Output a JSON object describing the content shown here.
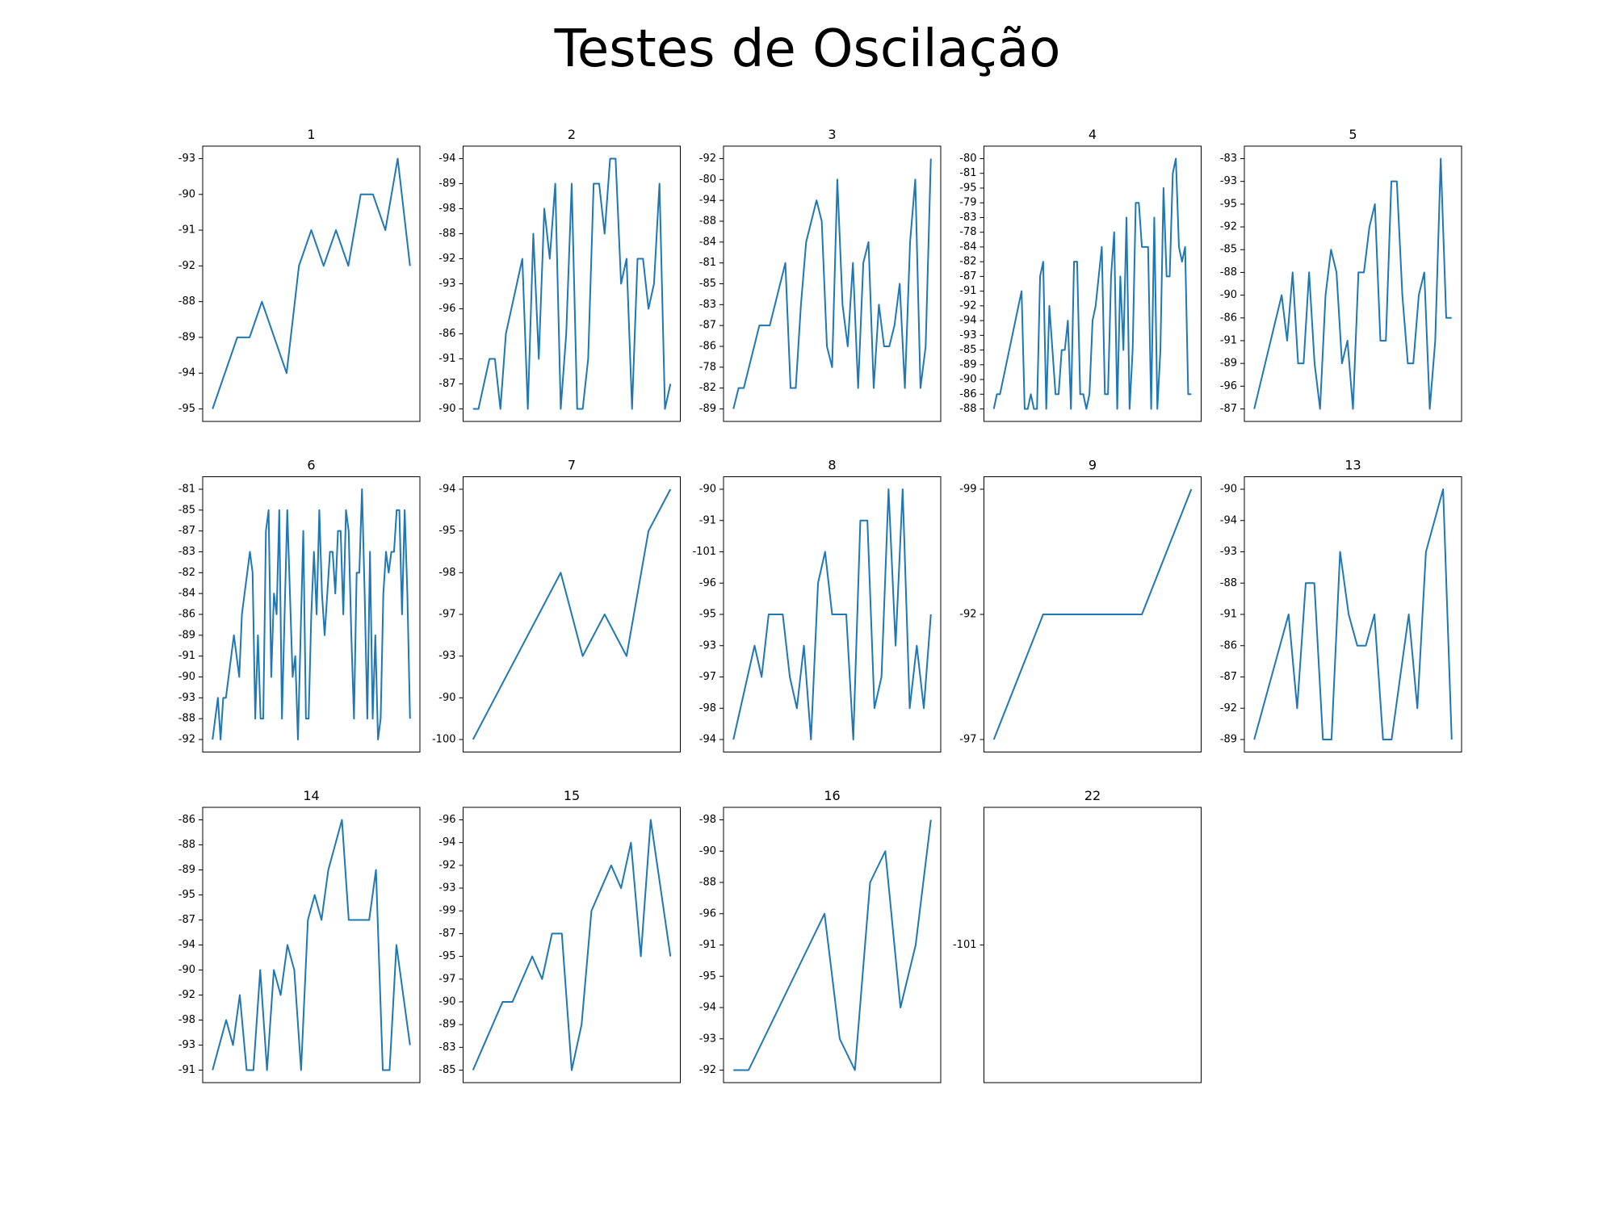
{
  "title": "Testes de Oscilação",
  "chart_data": [
    {
      "type": "line",
      "title": "1",
      "color": "#1f77b4",
      "ycategories": [
        -95,
        -94,
        -89,
        -88,
        -92,
        -91,
        -90,
        -93
      ],
      "values": [
        -95,
        -94,
        -89,
        -89,
        -88,
        -89,
        -94,
        -92,
        -91,
        -92,
        -91,
        -92,
        -90,
        -90,
        -91,
        -93,
        -92
      ]
    },
    {
      "type": "line",
      "title": "2",
      "color": "#1f77b4",
      "ycategories": [
        -90,
        -87,
        -91,
        -86,
        -96,
        -93,
        -92,
        -88,
        -98,
        -89,
        -94
      ],
      "values": [
        -90,
        -90,
        -87,
        -91,
        -91,
        -90,
        -86,
        -96,
        -93,
        -92,
        -90,
        -88,
        -91,
        -98,
        -92,
        -89,
        -90,
        -86,
        -89,
        -90,
        -90,
        -91,
        -89,
        -89,
        -88,
        -94,
        -94,
        -93,
        -92,
        -90,
        -92,
        -92,
        -96,
        -93,
        -89,
        -90,
        -87
      ]
    },
    {
      "type": "line",
      "title": "3",
      "color": "#1f77b4",
      "ycategories": [
        -89,
        -82,
        -78,
        -86,
        -87,
        -83,
        -85,
        -81,
        -84,
        -88,
        -94,
        -80,
        -92
      ],
      "values": [
        -89,
        -82,
        -82,
        -78,
        -86,
        -87,
        -87,
        -87,
        -83,
        -85,
        -81,
        -82,
        -82,
        -83,
        -84,
        -88,
        -94,
        -88,
        -86,
        -78,
        -80,
        -83,
        -86,
        -81,
        -82,
        -81,
        -84,
        -82,
        -83,
        -86,
        -86,
        -87,
        -85,
        -82,
        -84,
        -80,
        -82,
        -86,
        -92
      ]
    },
    {
      "type": "line",
      "title": "4",
      "color": "#1f77b4",
      "ycategories": [
        -88,
        -86,
        -90,
        -89,
        -85,
        -93,
        -94,
        -92,
        -91,
        -87,
        -82,
        -84,
        -78,
        -83,
        -79,
        -95,
        -81,
        -80
      ],
      "values": [
        -88,
        -86,
        -86,
        -90,
        -89,
        -85,
        -93,
        -94,
        -92,
        -91,
        -88,
        -88,
        -86,
        -88,
        -88,
        -87,
        -82,
        -88,
        -92,
        -85,
        -86,
        -86,
        -85,
        -85,
        -94,
        -88,
        -82,
        -82,
        -86,
        -86,
        -88,
        -86,
        -94,
        -92,
        -87,
        -84,
        -86,
        -86,
        -87,
        -78,
        -88,
        -87,
        -85,
        -83,
        -88,
        -85,
        -79,
        -79,
        -84,
        -84,
        -84,
        -88,
        -83,
        -88,
        -85,
        -95,
        -87,
        -87,
        -81,
        -80,
        -84,
        -82,
        -84,
        -86,
        -86
      ]
    },
    {
      "type": "line",
      "title": "5",
      "color": "#1f77b4",
      "ycategories": [
        -87,
        -96,
        -89,
        -91,
        -86,
        -90,
        -88,
        -85,
        -92,
        -95,
        -93,
        -83
      ],
      "values": [
        -87,
        -96,
        -89,
        -91,
        -86,
        -90,
        -91,
        -88,
        -89,
        -89,
        -88,
        -89,
        -87,
        -90,
        -85,
        -88,
        -89,
        -91,
        -87,
        -88,
        -88,
        -92,
        -95,
        -91,
        -91,
        -93,
        -93,
        -90,
        -89,
        -89,
        -90,
        -88,
        -87,
        -91,
        -83,
        -86,
        -86
      ]
    },
    {
      "type": "line",
      "title": "6",
      "color": "#1f77b4",
      "ycategories": [
        -92,
        -88,
        -93,
        -90,
        -91,
        -89,
        -86,
        -84,
        -82,
        -83,
        -87,
        -85,
        -81
      ],
      "values": [
        -92,
        -88,
        -93,
        -92,
        -93,
        -93,
        -90,
        -91,
        -89,
        -91,
        -90,
        -86,
        -84,
        -82,
        -83,
        -82,
        -88,
        -89,
        -88,
        -88,
        -87,
        -85,
        -90,
        -84,
        -86,
        -85,
        -88,
        -86,
        -85,
        -84,
        -90,
        -91,
        -92,
        -89,
        -87,
        -88,
        -88,
        -86,
        -83,
        -86,
        -85,
        -84,
        -89,
        -84,
        -83,
        -83,
        -84,
        -87,
        -87,
        -86,
        -85,
        -87,
        -89,
        -88,
        -82,
        -82,
        -81,
        -84,
        -88,
        -83,
        -88,
        -89,
        -92,
        -88,
        -84,
        -83,
        -82,
        -83,
        -83,
        -85,
        -85,
        -86,
        -85,
        -84,
        -88
      ]
    },
    {
      "type": "line",
      "title": "7",
      "color": "#1f77b4",
      "ycategories": [
        -100,
        -90,
        -93,
        -97,
        -98,
        -95,
        -94
      ],
      "values": [
        -100,
        -90,
        -93,
        -97,
        -98,
        -93,
        -97,
        -93,
        -95,
        -94
      ]
    },
    {
      "type": "line",
      "title": "8",
      "color": "#1f77b4",
      "ycategories": [
        -94,
        -98,
        -97,
        -93,
        -95,
        -96,
        -101,
        -91,
        -90
      ],
      "values": [
        -94,
        -98,
        -97,
        -93,
        -97,
        -95,
        -95,
        -95,
        -97,
        -98,
        -93,
        -94,
        -96,
        -101,
        -95,
        -95,
        -95,
        -94,
        -91,
        -91,
        -98,
        -97,
        -90,
        -93,
        -90,
        -98,
        -93,
        -98,
        -95
      ]
    },
    {
      "type": "line",
      "title": "9",
      "color": "#1f77b4",
      "ycategories": [
        -97,
        -92,
        -99
      ],
      "values": [
        -97,
        -92,
        -92,
        -92,
        -99
      ]
    },
    {
      "type": "line",
      "title": "13",
      "color": "#1f77b4",
      "ycategories": [
        -89,
        -92,
        -87,
        -86,
        -91,
        -88,
        -93,
        -94,
        -90
      ],
      "values": [
        -89,
        -92,
        -87,
        -86,
        -91,
        -92,
        -88,
        -88,
        -89,
        -89,
        -93,
        -91,
        -86,
        -86,
        -91,
        -89,
        -89,
        -87,
        -91,
        -92,
        -93,
        -94,
        -90,
        -89
      ]
    },
    {
      "type": "line",
      "title": "14",
      "color": "#1f77b4",
      "ycategories": [
        -91,
        -93,
        -98,
        -92,
        -90,
        -94,
        -87,
        -95,
        -89,
        -88,
        -86
      ],
      "values": [
        -91,
        -93,
        -98,
        -93,
        -92,
        -91,
        -91,
        -90,
        -91,
        -90,
        -92,
        -94,
        -90,
        -91,
        -87,
        -95,
        -87,
        -89,
        -88,
        -86,
        -87,
        -87,
        -87,
        -87,
        -89,
        -91,
        -91,
        -94,
        -92,
        -93
      ]
    },
    {
      "type": "line",
      "title": "15",
      "color": "#1f77b4",
      "ycategories": [
        -85,
        -83,
        -89,
        -90,
        -97,
        -95,
        -87,
        -99,
        -93,
        -92,
        -94,
        -96
      ],
      "values": [
        -85,
        -83,
        -89,
        -90,
        -90,
        -97,
        -95,
        -97,
        -87,
        -87,
        -85,
        -89,
        -99,
        -93,
        -92,
        -93,
        -94,
        -95,
        -96,
        -93,
        -95
      ]
    },
    {
      "type": "line",
      "title": "16",
      "color": "#1f77b4",
      "ycategories": [
        -92,
        -93,
        -94,
        -95,
        -91,
        -96,
        -88,
        -90,
        -98
      ],
      "values": [
        -92,
        -92,
        -93,
        -94,
        -95,
        -91,
        -96,
        -93,
        -92,
        -88,
        -90,
        -94,
        -91,
        -98
      ]
    },
    {
      "type": "line",
      "title": "22",
      "color": "#1f77b4",
      "ycategories": [
        -101
      ],
      "values": [
        -101
      ]
    }
  ]
}
